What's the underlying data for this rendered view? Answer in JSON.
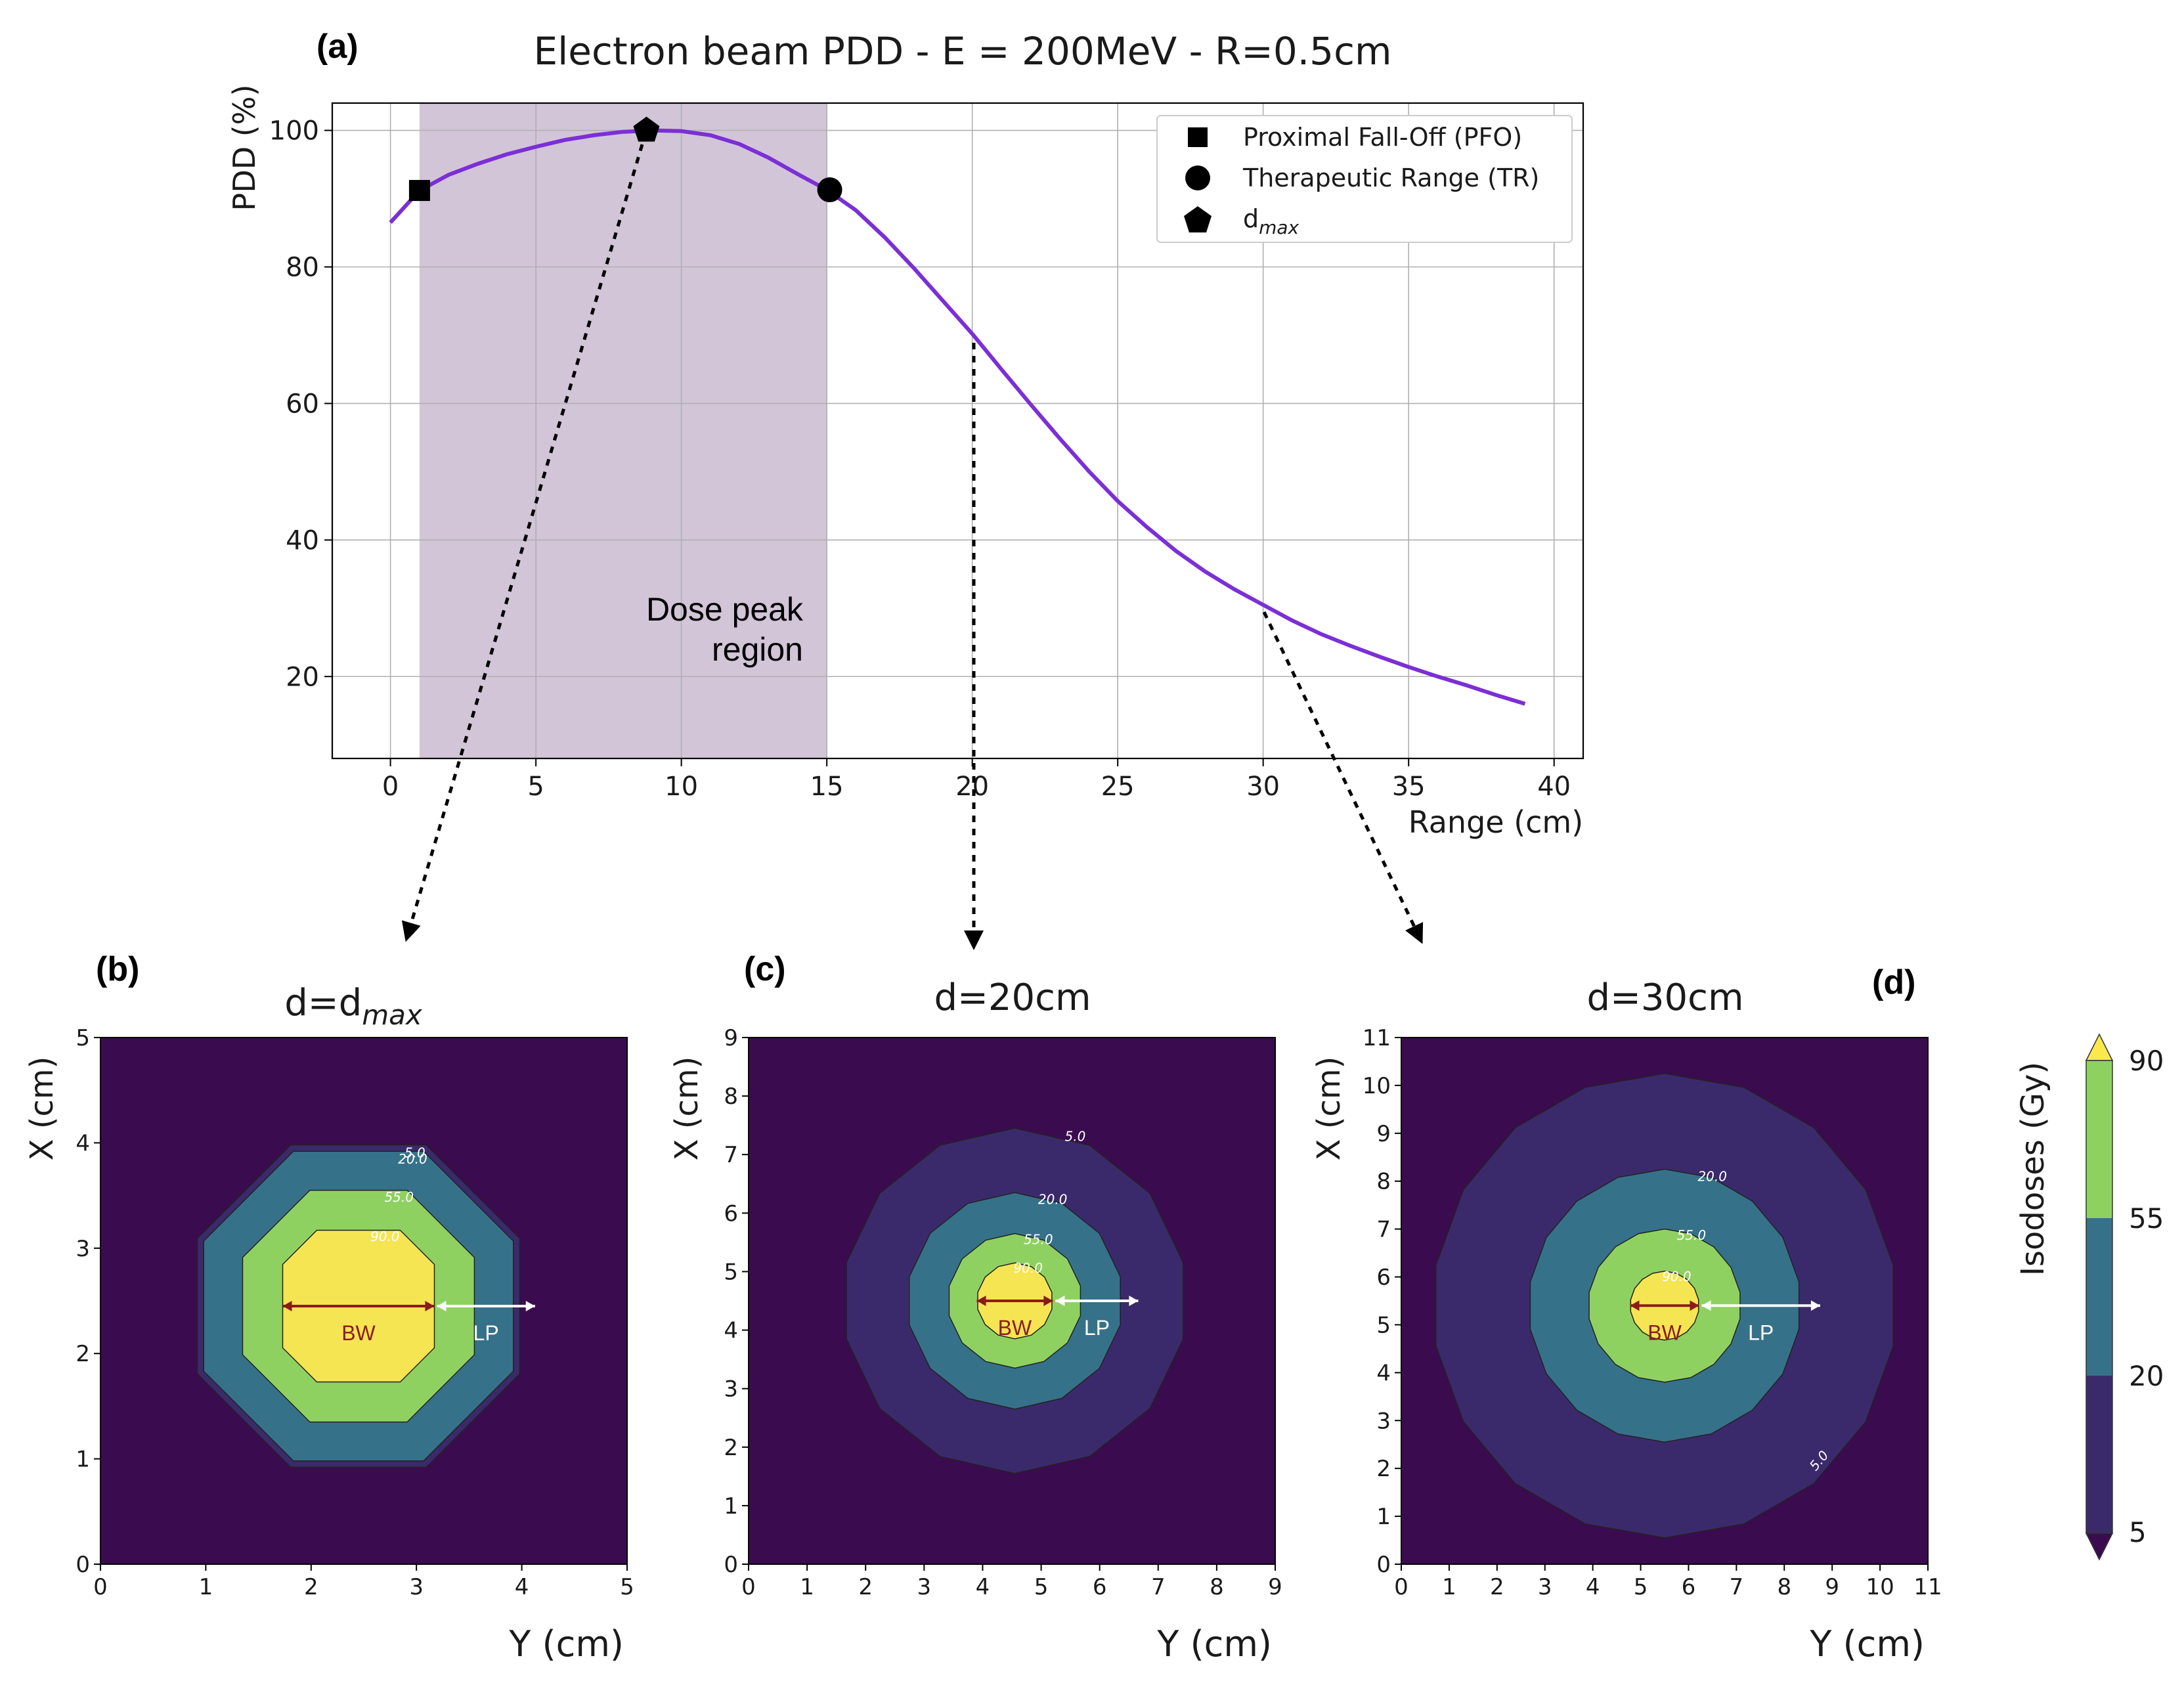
{
  "panel_labels": {
    "a": "(a)",
    "b": "(b)",
    "c": "(c)",
    "d": "(d)"
  },
  "annotation": {
    "line1": "Dose peak",
    "line2": "region"
  },
  "chart_data": [
    {
      "type": "line",
      "title": "Electron beam PDD - E = 200MeV - R=0.5cm",
      "xlabel": "Range (cm)",
      "ylabel": "PDD (%)",
      "xlim": [
        -2,
        41
      ],
      "ylim": [
        8,
        104
      ],
      "xticks": [
        0,
        5,
        10,
        15,
        20,
        25,
        30,
        35,
        40
      ],
      "yticks": [
        20,
        40,
        60,
        80,
        100
      ],
      "grid": true,
      "line_color": "#7b2fd6",
      "shaded_region": {
        "x": [
          1,
          15
        ],
        "color": "#d2c5d8"
      },
      "series": [
        {
          "x": [
            0,
            1,
            2,
            3,
            4,
            5,
            6,
            7,
            8,
            9,
            10,
            11,
            12,
            13,
            14,
            15,
            16,
            17,
            18,
            19,
            20,
            21,
            22,
            23,
            24,
            25,
            26,
            27,
            28,
            29,
            30,
            31,
            32,
            33,
            34,
            35,
            36,
            37,
            38,
            39
          ],
          "y": [
            86.5,
            91.2,
            93.5,
            95.1,
            96.5,
            97.6,
            98.6,
            99.3,
            99.8,
            100.0,
            99.9,
            99.3,
            98.0,
            96.0,
            93.6,
            91.3,
            88.3,
            84.3,
            79.8,
            75.0,
            70.2,
            65.0,
            59.9,
            54.9,
            50.1,
            45.7,
            41.9,
            38.4,
            35.4,
            32.8,
            30.5,
            28.2,
            26.2,
            24.5,
            22.9,
            21.4,
            20.0,
            18.7,
            17.3,
            16.0
          ]
        }
      ],
      "markers": [
        {
          "label": "Proximal Fall-Off (PFO)",
          "shape": "square",
          "x": 1,
          "y": 91.2
        },
        {
          "label": "Therapeutic Range (TR)",
          "shape": "circle",
          "x": 15.1,
          "y": 91.3
        },
        {
          "label": "d",
          "label_sub": "max",
          "shape": "pentagon",
          "x": 8.8,
          "y": 100
        }
      ],
      "legend": "top-right"
    },
    {
      "type": "contour",
      "title": "d=d",
      "title_sub": "max",
      "xlabel": "Y (cm)",
      "ylabel": "X (cm)",
      "xlim": [
        0,
        5
      ],
      "ylim": [
        0,
        5
      ],
      "xticks": [
        0,
        1,
        2,
        3,
        4,
        5
      ],
      "yticks": [
        0,
        1,
        2,
        3,
        4,
        5
      ],
      "center": [
        2.45,
        2.45
      ],
      "contour_radii": {
        "5": 1.53,
        "20": 1.47,
        "55": 1.1,
        "90": 0.72
      },
      "contour_labels": [
        "5.0",
        "20.0",
        "55.0",
        "90.0"
      ],
      "arrows": {
        "BW": "BW",
        "LP": "LP"
      }
    },
    {
      "type": "contour",
      "title": "d=20cm",
      "xlabel": "Y (cm)",
      "ylabel": "X (cm)",
      "xlim": [
        0,
        9
      ],
      "ylim": [
        0,
        9
      ],
      "xticks": [
        0,
        1,
        2,
        3,
        4,
        5,
        6,
        7,
        8,
        9
      ],
      "yticks": [
        0,
        1,
        2,
        3,
        4,
        5,
        6,
        7,
        8,
        9
      ],
      "center": [
        4.55,
        4.5
      ],
      "contour_radii": {
        "5": 2.95,
        "20": 1.85,
        "55": 1.15,
        "90": 0.65
      },
      "contour_labels": [
        "5.0",
        "20.0",
        "55.0",
        "90.0"
      ],
      "arrows": {
        "BW": "BW",
        "LP": "LP"
      }
    },
    {
      "type": "contour",
      "title": "d=30cm",
      "xlabel": "Y (cm)",
      "ylabel": "X (cm)",
      "xlim": [
        0,
        11
      ],
      "ylim": [
        0,
        11
      ],
      "xticks": [
        0,
        1,
        2,
        3,
        4,
        5,
        6,
        7,
        8,
        9,
        10,
        11
      ],
      "yticks": [
        0,
        1,
        2,
        3,
        4,
        5,
        6,
        7,
        8,
        9,
        10,
        11
      ],
      "center": [
        5.5,
        5.4
      ],
      "contour_radii": {
        "5": 4.85,
        "20": 2.85,
        "55": 1.6,
        "90": 0.72
      },
      "contour_labels": [
        "5.0",
        "20.0",
        "55.0",
        "90.0"
      ],
      "arrows": {
        "BW": "BW",
        "LP": "LP"
      }
    }
  ],
  "colorbar": {
    "label": "Isodoses (Gy)",
    "ticks": [
      "5",
      "20",
      "55",
      "90"
    ],
    "colors": [
      "#440154",
      "#3b2a6b",
      "#35708c",
      "#8fd161",
      "#fbe84d"
    ]
  },
  "colors": {
    "background": "#3b0b4f",
    "level5": "#3b2a6b",
    "level20": "#36718a",
    "level55": "#8fd161",
    "level90": "#f6e552",
    "bw_arrow": "#8b1b1b",
    "lp_arrow": "#ffffff"
  }
}
